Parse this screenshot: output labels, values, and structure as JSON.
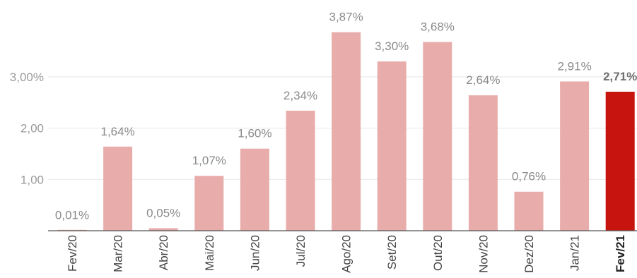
{
  "chart_data": {
    "type": "bar",
    "categories": [
      "Fev/20",
      "Mar/20",
      "Abr/20",
      "Mai/20",
      "Jun/20",
      "Jul/20",
      "Ago/20",
      "Set/20",
      "Out/20",
      "Nov/20",
      "Dez/20",
      "Jan/21",
      "Fev/21"
    ],
    "values": [
      0.01,
      1.64,
      0.05,
      1.07,
      1.6,
      2.34,
      3.87,
      3.3,
      3.68,
      2.64,
      0.76,
      2.91,
      2.71
    ],
    "value_labels": [
      "0,01%",
      "1,64%",
      "0,05%",
      "1,07%",
      "1,60%",
      "2,34%",
      "3,87%",
      "3,30%",
      "3,68%",
      "2,64%",
      "0,76%",
      "2,91%",
      "2,71%"
    ],
    "highlight_index": 12,
    "y_ticks": [
      {
        "value": 1,
        "label": "1,00"
      },
      {
        "value": 2,
        "label": "2,00"
      },
      {
        "value": 3,
        "label": "3,00%"
      }
    ],
    "ylim": [
      0,
      4.05
    ],
    "grid": true,
    "legend": "none",
    "colors": {
      "bar": "#e8adab",
      "highlight": "#c8140f",
      "grid": "#e6e6e6",
      "axis": "#555555"
    },
    "title": "",
    "xlabel": "",
    "ylabel": ""
  }
}
